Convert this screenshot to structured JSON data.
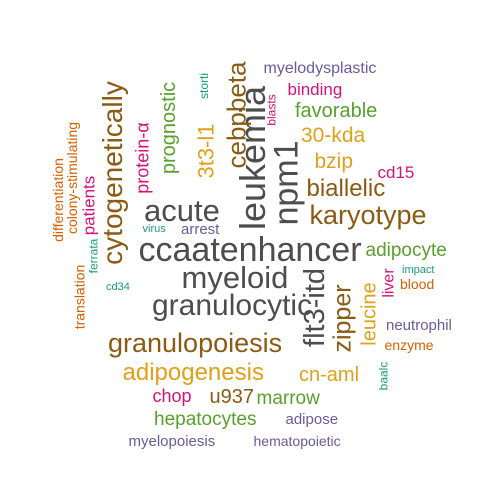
{
  "palette": {
    "dark_gray": "#4d4d4d",
    "brown": "#8b5a13",
    "gold": "#e0a11a",
    "green": "#59a12d",
    "magenta": "#d6127a",
    "purple": "#6a5aa0",
    "orange": "#d95f02",
    "teal": "#1b9e77"
  },
  "words": [
    {
      "text": "ccaatenhancer",
      "color": "#4d4d4d",
      "vertical": false
    },
    {
      "text": "myeloid",
      "color": "#4d4d4d",
      "vertical": false
    },
    {
      "text": "granulocytic",
      "color": "#4d4d4d",
      "vertical": false
    },
    {
      "text": "acute",
      "color": "#4d4d4d",
      "vertical": false
    },
    {
      "text": "granulopoiesis",
      "color": "#8b5a13",
      "vertical": false
    },
    {
      "text": "karyotype",
      "color": "#8b5a13",
      "vertical": false
    },
    {
      "text": "biallelic",
      "color": "#8b5a13",
      "vertical": false
    },
    {
      "text": "adipogenesis",
      "color": "#e0a11a",
      "vertical": false
    },
    {
      "text": "30-kda",
      "color": "#e0a11a",
      "vertical": false
    },
    {
      "text": "bzip",
      "color": "#e0a11a",
      "vertical": false
    },
    {
      "text": "cn-aml",
      "color": "#e0a11a",
      "vertical": false
    },
    {
      "text": "favorable",
      "color": "#59a12d",
      "vertical": false
    },
    {
      "text": "adipocyte",
      "color": "#59a12d",
      "vertical": false
    },
    {
      "text": "hepatocytes",
      "color": "#59a12d",
      "vertical": false
    },
    {
      "text": "marrow",
      "color": "#59a12d",
      "vertical": false
    },
    {
      "text": "u937",
      "color": "#8b5a13",
      "vertical": false
    },
    {
      "text": "chop",
      "color": "#d6127a",
      "vertical": false
    },
    {
      "text": "binding",
      "color": "#d6127a",
      "vertical": false
    },
    {
      "text": "cd15",
      "color": "#d6127a",
      "vertical": false
    },
    {
      "text": "myelodysplastic",
      "color": "#6a5aa0",
      "vertical": false
    },
    {
      "text": "arrest",
      "color": "#6a5aa0",
      "vertical": false
    },
    {
      "text": "neutrophil",
      "color": "#6a5aa0",
      "vertical": false
    },
    {
      "text": "adipose",
      "color": "#6a5aa0",
      "vertical": false
    },
    {
      "text": "myelopoiesis",
      "color": "#6a5aa0",
      "vertical": false
    },
    {
      "text": "hematopoietic",
      "color": "#6a5aa0",
      "vertical": false
    },
    {
      "text": "blood",
      "color": "#d95f02",
      "vertical": false
    },
    {
      "text": "enzyme",
      "color": "#d95f02",
      "vertical": false
    },
    {
      "text": "impact",
      "color": "#1b9e77",
      "vertical": false
    },
    {
      "text": "virus",
      "color": "#1b9e77",
      "vertical": false
    },
    {
      "text": "cd34",
      "color": "#1b9e77",
      "vertical": false
    },
    {
      "text": "leukemia",
      "color": "#4d4d4d",
      "vertical": true
    },
    {
      "text": "npm1",
      "color": "#4d4d4d",
      "vertical": true
    },
    {
      "text": "flt3-itd",
      "color": "#4d4d4d",
      "vertical": true
    },
    {
      "text": "cytogenetically",
      "color": "#8b5a13",
      "vertical": true
    },
    {
      "text": "cebpbeta",
      "color": "#8b5a13",
      "vertical": true
    },
    {
      "text": "zipper",
      "color": "#8b5a13",
      "vertical": true
    },
    {
      "text": "3t3-l1",
      "color": "#e0a11a",
      "vertical": true
    },
    {
      "text": "leucine",
      "color": "#e0a11a",
      "vertical": true
    },
    {
      "text": "prognostic",
      "color": "#59a12d",
      "vertical": true
    },
    {
      "text": "protein-α",
      "color": "#d6127a",
      "vertical": true
    },
    {
      "text": "patients",
      "color": "#d6127a",
      "vertical": true
    },
    {
      "text": "liver",
      "color": "#d6127a",
      "vertical": true
    },
    {
      "text": "blasts",
      "color": "#d6127a",
      "vertical": true
    },
    {
      "text": "differentiation",
      "color": "#d95f02",
      "vertical": true
    },
    {
      "text": "colony-stimulating",
      "color": "#d95f02",
      "vertical": true
    },
    {
      "text": "translation",
      "color": "#d95f02",
      "vertical": true
    },
    {
      "text": "storti",
      "color": "#1b9e77",
      "vertical": true
    },
    {
      "text": "ferrata",
      "color": "#1b9e77",
      "vertical": true
    },
    {
      "text": "baalc",
      "color": "#1b9e77",
      "vertical": true
    }
  ]
}
